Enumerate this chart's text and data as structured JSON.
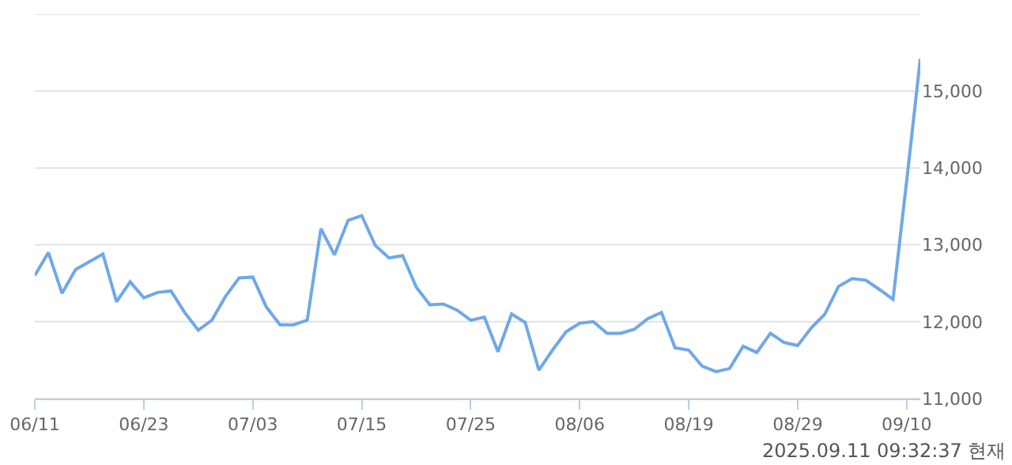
{
  "chart_data": {
    "type": "line",
    "categories": [
      "06/11",
      null,
      null,
      null,
      null,
      null,
      null,
      null,
      "06/23",
      null,
      null,
      null,
      null,
      null,
      null,
      null,
      "07/03",
      null,
      null,
      null,
      null,
      null,
      null,
      null,
      "07/15",
      null,
      null,
      null,
      null,
      null,
      null,
      null,
      "07/25",
      null,
      null,
      null,
      null,
      null,
      null,
      null,
      "08/06",
      null,
      null,
      null,
      null,
      null,
      null,
      null,
      "08/19",
      null,
      null,
      null,
      null,
      null,
      null,
      null,
      "08/29",
      null,
      null,
      null,
      null,
      null,
      null,
      null,
      "09/10",
      null
    ],
    "series": [
      {
        "color": "#6fa8e8",
        "values": [
          12600,
          12900,
          12370,
          12680,
          12780,
          12880,
          12260,
          12520,
          12310,
          12380,
          12400,
          12120,
          11890,
          12020,
          12330,
          12570,
          12580,
          12190,
          11960,
          11960,
          12020,
          13210,
          12870,
          13320,
          13380,
          12990,
          12830,
          12860,
          12450,
          12220,
          12230,
          12150,
          12020,
          12060,
          11610,
          12100,
          11990,
          11370,
          11630,
          11870,
          11980,
          12000,
          11850,
          11850,
          11900,
          12040,
          12120,
          11660,
          11630,
          11420,
          11350,
          11390,
          11680,
          11600,
          11850,
          11730,
          11690,
          11920,
          12100,
          12460,
          12560,
          12540,
          12420,
          12290,
          13830,
          15420
        ]
      }
    ],
    "ylim": [
      11000,
      16000
    ],
    "yticks": [
      {
        "value": 11000,
        "label": "11,000"
      },
      {
        "value": 12000,
        "label": "12,000"
      },
      {
        "value": 13000,
        "label": "13,000"
      },
      {
        "value": 14000,
        "label": "14,000"
      },
      {
        "value": 15000,
        "label": "15,000"
      },
      {
        "value": 16000,
        "label": null
      }
    ],
    "grid": "y",
    "marker": "none",
    "line_style": "solid",
    "annotations": [
      "2025.09.11 09:32:37 현재"
    ]
  }
}
